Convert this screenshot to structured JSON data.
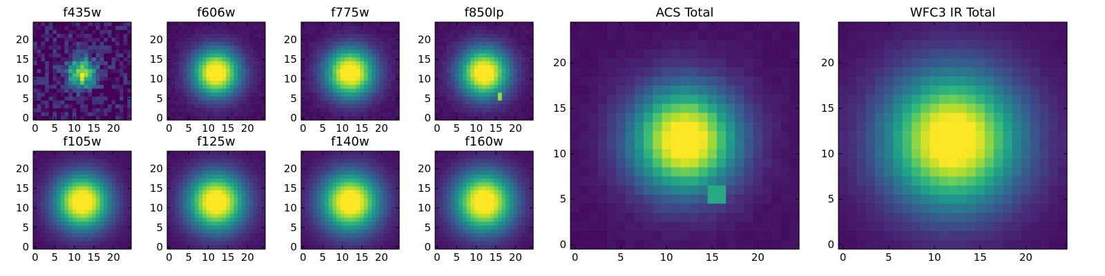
{
  "chart_data": [
    {
      "type": "heatmap",
      "title": "f435w",
      "noise": 0.16,
      "peak": 0.85,
      "sigma": 2.6,
      "center": [
        12,
        11.5
      ],
      "xticks": [
        "0",
        "5",
        "10",
        "15",
        "20"
      ],
      "yticks": [
        "0",
        "5",
        "10",
        "15",
        "20"
      ],
      "extent": [
        -0.5,
        24.5,
        -0.5,
        24.5
      ],
      "colormap": "viridis"
    },
    {
      "type": "heatmap",
      "title": "f606w",
      "noise": 0.02,
      "peak": 1.0,
      "sigma": 4.2,
      "center": [
        12,
        11.5
      ],
      "xticks": [
        "0",
        "5",
        "10",
        "15",
        "20"
      ],
      "yticks": [
        "0",
        "5",
        "10",
        "15",
        "20"
      ],
      "extent": [
        -0.5,
        24.5,
        -0.5,
        24.5
      ],
      "colormap": "viridis"
    },
    {
      "type": "heatmap",
      "title": "f775w",
      "noise": 0.02,
      "peak": 1.0,
      "sigma": 4.4,
      "center": [
        12,
        11.5
      ],
      "xticks": [
        "0",
        "5",
        "10",
        "15",
        "20"
      ],
      "yticks": [
        "0",
        "5",
        "10",
        "15",
        "20"
      ],
      "extent": [
        -0.5,
        24.5,
        -0.5,
        24.5
      ],
      "colormap": "viridis"
    },
    {
      "type": "heatmap",
      "title": "f850lp",
      "noise": 0.02,
      "peak": 1.0,
      "sigma": 4.4,
      "center": [
        12,
        11.5
      ],
      "hotspot": {
        "x": 16,
        "y": 5.5,
        "value": 0.85
      },
      "xticks": [
        "0",
        "5",
        "10",
        "15",
        "20"
      ],
      "yticks": [
        "0",
        "5",
        "10",
        "15",
        "20"
      ],
      "extent": [
        -0.5,
        24.5,
        -0.5,
        24.5
      ],
      "colormap": "viridis"
    },
    {
      "type": "heatmap",
      "title": "f105w",
      "noise": 0.01,
      "peak": 1.0,
      "sigma": 4.9,
      "center": [
        12,
        11.5
      ],
      "xticks": [
        "0",
        "5",
        "10",
        "15",
        "20"
      ],
      "yticks": [
        "0",
        "5",
        "10",
        "15",
        "20"
      ],
      "extent": [
        -0.5,
        24.5,
        -0.5,
        24.5
      ],
      "colormap": "viridis"
    },
    {
      "type": "heatmap",
      "title": "f125w",
      "noise": 0.01,
      "peak": 1.0,
      "sigma": 5.1,
      "center": [
        12,
        11.5
      ],
      "xticks": [
        "0",
        "5",
        "10",
        "15",
        "20"
      ],
      "yticks": [
        "0",
        "5",
        "10",
        "15",
        "20"
      ],
      "extent": [
        -0.5,
        24.5,
        -0.5,
        24.5
      ],
      "colormap": "viridis"
    },
    {
      "type": "heatmap",
      "title": "f140w",
      "noise": 0.01,
      "peak": 1.0,
      "sigma": 5.2,
      "center": [
        12,
        11.5
      ],
      "xticks": [
        "0",
        "5",
        "10",
        "15",
        "20"
      ],
      "yticks": [
        "0",
        "5",
        "10",
        "15",
        "20"
      ],
      "extent": [
        -0.5,
        24.5,
        -0.5,
        24.5
      ],
      "colormap": "viridis"
    },
    {
      "type": "heatmap",
      "title": "f160w",
      "noise": 0.01,
      "peak": 1.0,
      "sigma": 5.3,
      "center": [
        12,
        11.5
      ],
      "xticks": [
        "0",
        "5",
        "10",
        "15",
        "20"
      ],
      "yticks": [
        "0",
        "5",
        "10",
        "15",
        "20"
      ],
      "extent": [
        -0.5,
        24.5,
        -0.5,
        24.5
      ],
      "colormap": "viridis"
    },
    {
      "type": "heatmap",
      "title": "ACS Total",
      "noise": 0.015,
      "peak": 1.0,
      "sigma": 4.0,
      "center": [
        12,
        11.5
      ],
      "hotspot": {
        "x": 15.5,
        "y": 5.5,
        "value": 0.6
      },
      "xticks": [
        "0",
        "5",
        "10",
        "15",
        "20"
      ],
      "yticks": [
        "0",
        "5",
        "10",
        "15",
        "20"
      ],
      "extent": [
        -0.5,
        24.5,
        -0.5,
        24.5
      ],
      "colormap": "viridis"
    },
    {
      "type": "heatmap",
      "title": "WFC3 IR Total",
      "noise": 0.01,
      "peak": 1.0,
      "sigma": 5.1,
      "center": [
        12,
        11.5
      ],
      "xticks": [
        "0",
        "5",
        "10",
        "15",
        "20"
      ],
      "yticks": [
        "0",
        "5",
        "10",
        "15",
        "20"
      ],
      "extent": [
        -0.5,
        24.5,
        -0.5,
        24.5
      ],
      "colormap": "viridis"
    }
  ]
}
